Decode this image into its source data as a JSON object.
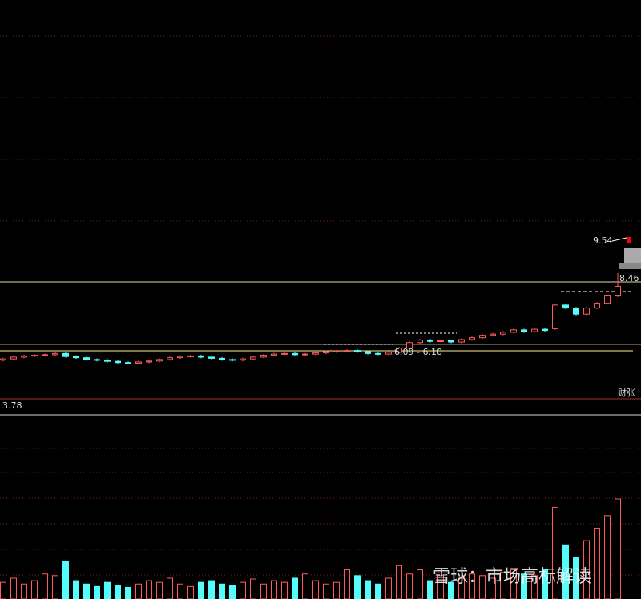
{
  "chart_data": {
    "type": "candlestick",
    "open": [
      5.58,
      5.62,
      5.68,
      5.72,
      5.74,
      5.76,
      5.8,
      5.7,
      5.66,
      5.6,
      5.58,
      5.54,
      5.5,
      5.48,
      5.52,
      5.55,
      5.6,
      5.66,
      5.7,
      5.72,
      5.68,
      5.64,
      5.6,
      5.58,
      5.62,
      5.68,
      5.74,
      5.78,
      5.8,
      5.76,
      5.78,
      5.82,
      5.86,
      5.88,
      5.9,
      5.86,
      5.8,
      5.78,
      5.84,
      5.98,
      6.16,
      6.24,
      6.2,
      6.22,
      6.18,
      6.26,
      6.32,
      6.4,
      6.44,
      6.5,
      6.58,
      6.52,
      6.6,
      6.62,
      7.4,
      7.3,
      7.1,
      7.3,
      7.46,
      7.7
    ],
    "high": [
      5.66,
      5.72,
      5.76,
      5.78,
      5.8,
      5.84,
      5.84,
      5.74,
      5.7,
      5.64,
      5.62,
      5.58,
      5.54,
      5.56,
      5.59,
      5.64,
      5.7,
      5.74,
      5.76,
      5.76,
      5.72,
      5.68,
      5.64,
      5.66,
      5.72,
      5.78,
      5.82,
      5.84,
      5.84,
      5.82,
      5.86,
      5.9,
      5.92,
      5.94,
      5.94,
      5.9,
      5.84,
      5.88,
      6.02,
      6.2,
      6.28,
      6.28,
      6.26,
      6.26,
      6.3,
      6.36,
      6.44,
      6.48,
      6.54,
      6.62,
      6.62,
      6.64,
      6.64,
      7.44,
      7.44,
      7.34,
      7.34,
      7.5,
      7.74,
      8.46
    ],
    "low": [
      5.54,
      5.58,
      5.64,
      5.68,
      5.7,
      5.72,
      5.66,
      5.62,
      5.56,
      5.54,
      5.5,
      5.46,
      5.44,
      5.44,
      5.48,
      5.51,
      5.56,
      5.62,
      5.66,
      5.64,
      5.6,
      5.56,
      5.54,
      5.54,
      5.58,
      5.64,
      5.7,
      5.74,
      5.72,
      5.72,
      5.74,
      5.78,
      5.82,
      5.84,
      5.82,
      5.76,
      5.74,
      5.74,
      5.8,
      5.94,
      6.12,
      6.16,
      6.16,
      6.14,
      6.14,
      6.22,
      6.28,
      6.36,
      6.4,
      6.46,
      6.48,
      6.48,
      6.52,
      6.58,
      7.26,
      7.06,
      7.06,
      7.26,
      7.42,
      7.66
    ],
    "close": [
      5.62,
      5.68,
      5.72,
      5.74,
      5.76,
      5.8,
      5.7,
      5.66,
      5.6,
      5.58,
      5.54,
      5.5,
      5.48,
      5.52,
      5.55,
      5.6,
      5.66,
      5.7,
      5.72,
      5.68,
      5.64,
      5.6,
      5.58,
      5.62,
      5.68,
      5.74,
      5.78,
      5.8,
      5.76,
      5.78,
      5.82,
      5.86,
      5.88,
      5.9,
      5.86,
      5.8,
      5.78,
      5.84,
      5.98,
      6.16,
      6.24,
      6.2,
      6.22,
      6.18,
      6.26,
      6.32,
      6.4,
      6.44,
      6.5,
      6.58,
      6.52,
      6.6,
      6.56,
      7.4,
      7.3,
      7.1,
      7.3,
      7.46,
      7.7,
      8.02
    ],
    "volume": [
      20,
      25,
      18,
      22,
      30,
      28,
      45,
      22,
      18,
      15,
      20,
      16,
      14,
      18,
      22,
      20,
      25,
      18,
      15,
      20,
      22,
      18,
      16,
      20,
      24,
      18,
      22,
      20,
      25,
      30,
      22,
      18,
      20,
      35,
      28,
      22,
      18,
      25,
      40,
      30,
      35,
      22,
      28,
      20,
      25,
      30,
      28,
      25,
      32,
      35,
      30,
      28,
      35,
      110,
      65,
      50,
      70,
      85,
      100,
      120
    ],
    "annotations": [
      "9.54",
      "8.46",
      "6.09 - 6.10",
      "3.78",
      "财张"
    ],
    "up_color": "#ff5a5a",
    "down_color": "#54fcfc"
  },
  "watermark": "雪球：市场高标解读"
}
